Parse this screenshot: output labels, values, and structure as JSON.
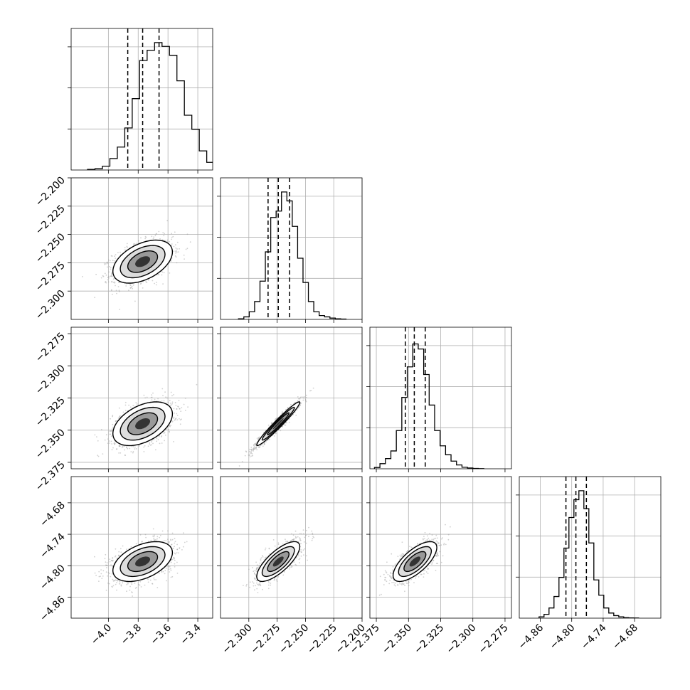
{
  "chart_data": {
    "type": "corner",
    "title": "",
    "grid": true,
    "parameters": [
      {
        "name": "",
        "range": [
          -4.25,
          -3.3
        ],
        "ticks": [
          -4.0,
          -3.8,
          -3.6,
          -3.4
        ],
        "tick_labels": [
          "−4.0",
          "−3.8",
          "−3.6",
          "−3.4"
        ],
        "quantiles": [
          -3.87,
          -3.77,
          -3.66
        ],
        "mean": -3.77,
        "sd": 0.1
      },
      {
        "name": "",
        "range": [
          -2.325,
          -2.2
        ],
        "ticks": [
          -2.3,
          -2.275,
          -2.25,
          -2.225,
          -2.2
        ],
        "tick_labels": [
          "−2.300",
          "−2.275",
          "−2.250",
          "−2.225",
          "−2.200"
        ],
        "quantiles": [
          -2.283,
          -2.274,
          -2.264
        ],
        "mean": -2.274,
        "sd": 0.0095
      },
      {
        "name": "",
        "range": [
          -2.38,
          -2.27
        ],
        "ticks": [
          -2.375,
          -2.35,
          -2.325,
          -2.3,
          -2.275
        ],
        "tick_labels": [
          "−2.375",
          "−2.350",
          "−2.325",
          "−2.300",
          "−2.275"
        ],
        "quantiles": [
          -2.3525,
          -2.3455,
          -2.337
        ],
        "mean": -2.345,
        "sd": 0.0085
      },
      {
        "name": "",
        "range": [
          -4.9,
          -4.63
        ],
        "ticks": [
          -4.86,
          -4.8,
          -4.74,
          -4.68
        ],
        "tick_labels": [
          "−4.86",
          "−4.80",
          "−4.74",
          "−4.68"
        ],
        "quantiles": [
          -4.811,
          -4.792,
          -4.772
        ],
        "mean": -4.792,
        "sd": 0.019
      }
    ],
    "histograms": [
      [
        0.005,
        0.01,
        0.03,
        0.09,
        0.18,
        0.33,
        0.56,
        0.86,
        0.94,
        1.0,
        0.97,
        0.9,
        0.7,
        0.43,
        0.32,
        0.15,
        0.06,
        0.03,
        0.012,
        0.004
      ],
      [
        0.005,
        0.02,
        0.06,
        0.14,
        0.3,
        0.53,
        0.8,
        0.85,
        1.0,
        0.93,
        0.73,
        0.48,
        0.29,
        0.14,
        0.06,
        0.03,
        0.02,
        0.01,
        0.005,
        0.003
      ],
      [
        0.01,
        0.04,
        0.08,
        0.14,
        0.3,
        0.56,
        0.8,
        0.98,
        0.94,
        0.74,
        0.5,
        0.3,
        0.18,
        0.11,
        0.06,
        0.03,
        0.012,
        0.006,
        0.003,
        0.001
      ],
      [
        0.01,
        0.03,
        0.08,
        0.17,
        0.32,
        0.55,
        0.79,
        0.93,
        1.0,
        0.86,
        0.59,
        0.3,
        0.18,
        0.08,
        0.04,
        0.02,
        0.01,
        0.004,
        0.002,
        0.001
      ]
    ],
    "correlations": {
      "1-0": 0.45,
      "2-0": 0.45,
      "2-1": 0.97,
      "3-0": 0.45,
      "3-1": 0.75,
      "3-2": 0.7
    },
    "contour_levels": [
      0.5,
      1.0,
      1.5,
      2.0
    ]
  }
}
